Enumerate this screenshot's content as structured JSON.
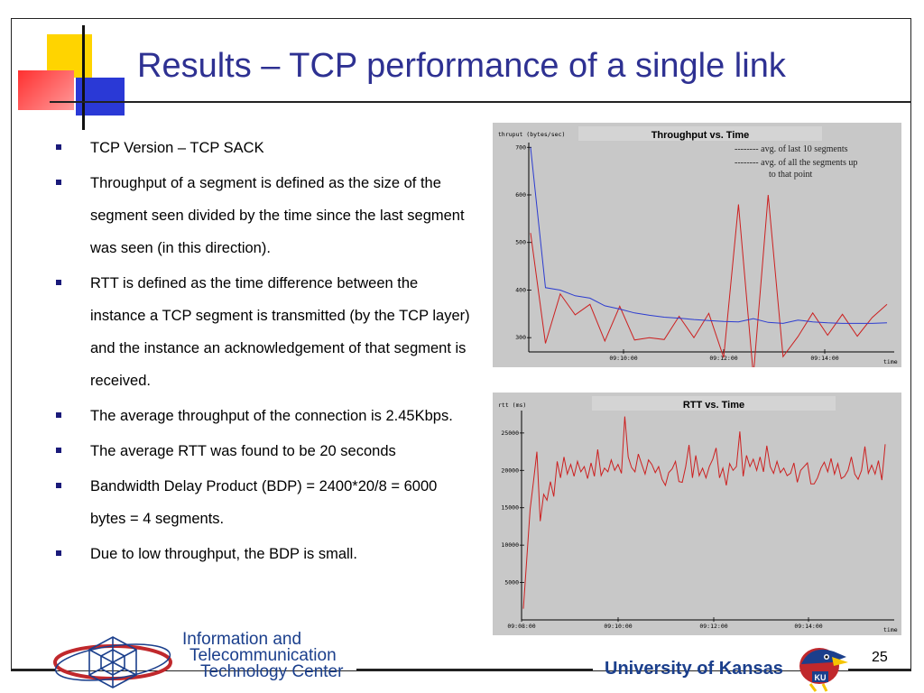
{
  "slide": {
    "title": "Results – TCP performance of a single link",
    "page_number": "25",
    "bullets": [
      "TCP Version – TCP SACK",
      "Throughput of a segment is defined as the size of the segment seen divided by the time since the last segment was seen (in this direction).",
      "RTT is defined as the time difference between the instance a TCP segment is transmitted (by the TCP layer) and the instance an acknowledgement of that segment is received.",
      "The average throughput of the connection is 2.45Kbps.",
      "The average RTT was found to be 20 seconds",
      "Bandwidth Delay Product (BDP) = 2400*20/8 = 6000 bytes = 4 segments.",
      "Due to low throughput, the BDP is small."
    ],
    "footer": {
      "itc_line1": "Information and",
      "itc_line2": "Telecommunication",
      "itc_line3": "Technology Center",
      "ku": "University of Kansas",
      "ku_logo": "jayhawk-logo"
    },
    "colors": {
      "title": "#2e3192",
      "chart_bg": "#c8c8c8",
      "red_series": "#cc2020",
      "blue_series": "#2c3cd0"
    }
  },
  "chart_data": [
    {
      "type": "line",
      "title": "Throughput vs. Time",
      "ylabel": "thruput (bytes/sec)",
      "xlabel": "time",
      "x_ticks": [
        "09:10:00",
        "09:12:00",
        "09:14:00"
      ],
      "y_ticks": [
        300,
        400,
        500,
        600,
        700
      ],
      "ylim": [
        270,
        710
      ],
      "legend": [
        "-------- avg. of last 10 segments",
        "-------- avg. of all the segments up",
        "to that point"
      ],
      "series": [
        {
          "name": "avg. of last 10 segments",
          "color": "#cc2020",
          "values": [
            520,
            288,
            392,
            348,
            370,
            293,
            366,
            295,
            300,
            296,
            345,
            300,
            351,
            258,
            580,
            220,
            600,
            260,
            302,
            352,
            305,
            349,
            303,
            342,
            370
          ]
        },
        {
          "name": "avg. of all the segments up to that point",
          "color": "#2c3cd0",
          "values": [
            700,
            405,
            400,
            388,
            383,
            367,
            360,
            352,
            347,
            343,
            341,
            338,
            336,
            334,
            333,
            340,
            332,
            330,
            337,
            333,
            331,
            330,
            330,
            330,
            331
          ]
        }
      ]
    },
    {
      "type": "line",
      "title": "RTT vs. Time",
      "ylabel": "rtt (ms)",
      "xlabel": "time",
      "x_ticks": [
        "09:08:00",
        "09:10:00",
        "09:12:00",
        "09:14:00"
      ],
      "y_ticks": [
        5000,
        10000,
        15000,
        20000,
        25000
      ],
      "ylim": [
        0,
        28000
      ],
      "series": [
        {
          "name": "",
          "color": "#cc2020",
          "values": [
            1500,
            8000,
            14800,
            18500,
            22500,
            13200,
            16800,
            16000,
            18500,
            16500,
            21200,
            19000,
            21800,
            19500,
            20800,
            19200,
            21200,
            19800,
            20500,
            18900,
            21000,
            19200,
            22800,
            19300,
            20300,
            19800,
            21400,
            20000,
            20800,
            19600,
            27200,
            21800,
            20400,
            19800,
            22200,
            20800,
            19500,
            21400,
            20800,
            19700,
            20500,
            18800,
            18000,
            19700,
            20200,
            21200,
            18500,
            18400,
            20500,
            23400,
            19000,
            22000,
            19300,
            20300,
            19000,
            20500,
            21500,
            23000,
            19000,
            20300,
            18000,
            20900,
            20000,
            20500,
            25200,
            19200,
            22000,
            20500,
            21500,
            20000,
            21800,
            19800,
            23300,
            20500,
            19600,
            21200,
            19700,
            20300,
            19300,
            19600,
            21000,
            18400,
            20000,
            20500,
            21000,
            18200,
            18200,
            19000,
            20300,
            21100,
            19800,
            21600,
            19500,
            20900,
            18900,
            19200,
            20000,
            21800,
            19500,
            18800,
            20000,
            23200,
            19600,
            20700,
            19500,
            21300,
            18700,
            23500
          ]
        }
      ]
    }
  ]
}
